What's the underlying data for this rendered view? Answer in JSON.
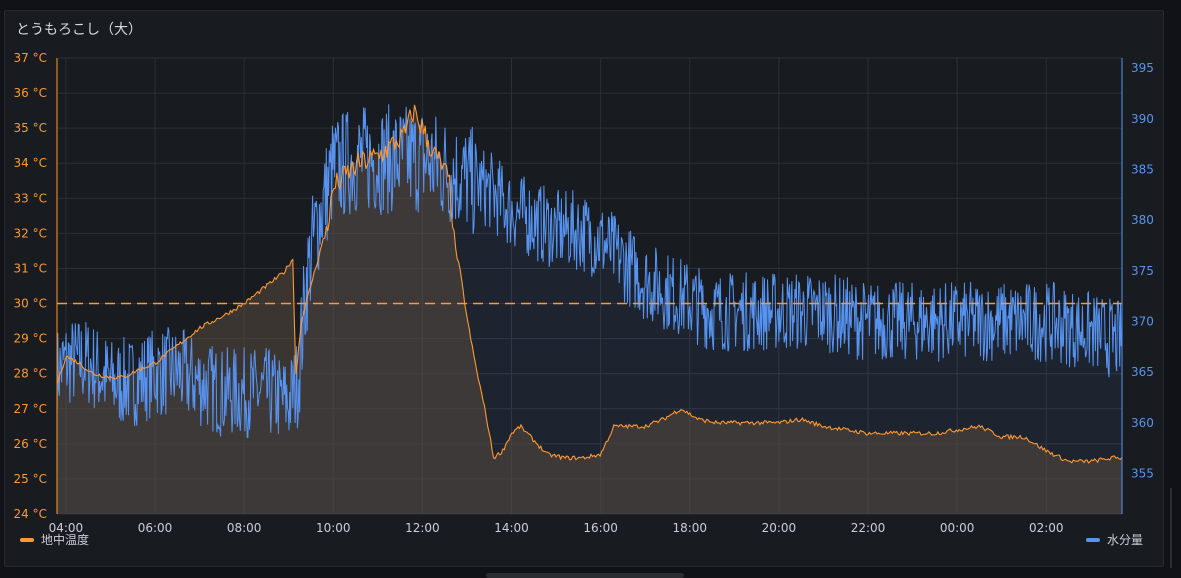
{
  "panel": {
    "title": "とうもろこし（大）"
  },
  "legend": {
    "left_label": "地中温度",
    "right_label": "水分量"
  },
  "colors": {
    "temp": "#ff9830",
    "moisture": "#5794f2",
    "grid": "#2c3036",
    "threshold": "#ff9830"
  },
  "chart_data": {
    "type": "line",
    "title": "とうもろこし（大）",
    "x_ticks": [
      "04:00",
      "06:00",
      "08:00",
      "10:00",
      "12:00",
      "14:00",
      "16:00",
      "18:00",
      "20:00",
      "22:00",
      "00:00",
      "02:00"
    ],
    "xlim_hours": [
      3.8,
      27.7
    ],
    "y_left": {
      "unit": "°C",
      "ylim": [
        24,
        37
      ],
      "ticks": [
        "24 °C",
        "25 °C",
        "26 °C",
        "27 °C",
        "28 °C",
        "29 °C",
        "30 °C",
        "31 °C",
        "32 °C",
        "33 °C",
        "34 °C",
        "35 °C",
        "36 °C",
        "37 °C"
      ],
      "threshold": 30
    },
    "y_right": {
      "ylim": [
        351,
        396
      ],
      "ticks": [
        "355",
        "360",
        "365",
        "370",
        "375",
        "380",
        "385",
        "390",
        "395"
      ]
    },
    "grid": true,
    "legend_position": "bottom",
    "series": [
      {
        "name": "地中温度",
        "axis": "left",
        "x": [
          3.8,
          4.0,
          4.3,
          4.6,
          5.0,
          5.3,
          5.6,
          6.0,
          6.3,
          6.6,
          7.0,
          7.3,
          7.6,
          8.0,
          8.3,
          8.6,
          8.9,
          9.1,
          9.15,
          9.3,
          9.6,
          9.9,
          10.0,
          10.3,
          10.6,
          11.0,
          11.3,
          11.6,
          11.8,
          12.0,
          12.2,
          12.4,
          12.6,
          12.75,
          12.85,
          13.0,
          13.2,
          13.4,
          13.6,
          13.8,
          14.0,
          14.2,
          14.5,
          14.8,
          15.2,
          15.6,
          16.0,
          16.3,
          16.6,
          17.0,
          17.4,
          17.8,
          18.2,
          18.6,
          19.0,
          19.5,
          20.0,
          20.5,
          21.0,
          21.5,
          22.0,
          22.5,
          23.0,
          23.5,
          24.0,
          24.5,
          25.0,
          25.5,
          26.0,
          26.5,
          27.0,
          27.5,
          27.7
        ],
        "values": [
          27.7,
          28.5,
          28.3,
          28.0,
          27.9,
          27.9,
          28.1,
          28.3,
          28.6,
          28.9,
          29.3,
          29.5,
          29.7,
          30.0,
          30.3,
          30.6,
          30.9,
          31.3,
          27.9,
          29.6,
          31.0,
          32.4,
          33.3,
          33.7,
          34.0,
          34.2,
          34.5,
          34.8,
          35.5,
          35.0,
          34.4,
          34.0,
          33.5,
          31.5,
          30.9,
          29.6,
          28.2,
          27.0,
          25.6,
          25.8,
          26.3,
          26.5,
          26.1,
          25.7,
          25.6,
          25.6,
          25.7,
          26.5,
          26.5,
          26.5,
          26.7,
          27.0,
          26.7,
          26.6,
          26.6,
          26.6,
          26.6,
          26.7,
          26.5,
          26.4,
          26.3,
          26.3,
          26.3,
          26.3,
          26.4,
          26.5,
          26.2,
          26.2,
          25.8,
          25.5,
          25.5,
          25.6,
          25.6
        ]
      },
      {
        "name": "水分量",
        "axis": "right",
        "x": [
          3.8,
          4.0,
          4.5,
          5.0,
          5.5,
          6.0,
          6.5,
          7.0,
          7.5,
          8.0,
          8.5,
          9.0,
          9.2,
          9.4,
          9.6,
          9.8,
          10.0,
          10.5,
          11.0,
          11.5,
          12.0,
          12.5,
          13.0,
          13.5,
          14.0,
          14.5,
          15.0,
          15.5,
          16.0,
          16.5,
          17.0,
          17.5,
          18.0,
          18.5,
          19.0,
          20.0,
          21.0,
          22.0,
          23.0,
          24.0,
          25.0,
          26.0,
          27.0,
          27.7
        ],
        "values": [
          365,
          366,
          366,
          364,
          364,
          365,
          365,
          364,
          363,
          363,
          363,
          362,
          364,
          374,
          379,
          382,
          385,
          386,
          386,
          386,
          386,
          385,
          384,
          383,
          381,
          380,
          379,
          379,
          378,
          376,
          374,
          373,
          372,
          371,
          371,
          371,
          371,
          370,
          370,
          370,
          370,
          370,
          369,
          368
        ]
      }
    ]
  }
}
